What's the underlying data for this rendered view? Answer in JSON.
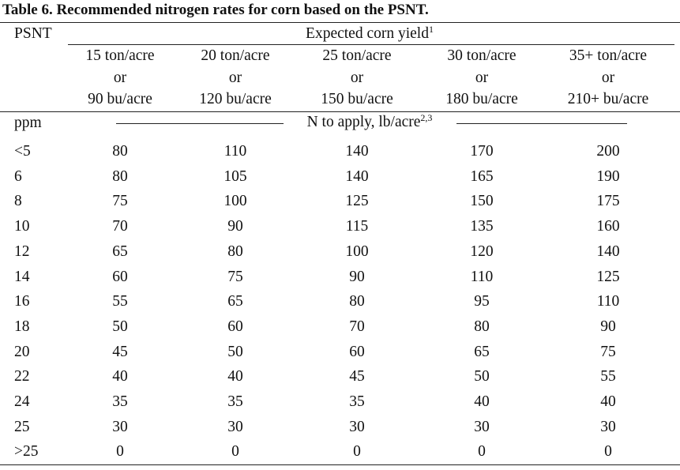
{
  "header": {
    "title": "Table 6. Recommended nitrogen rates for corn based on the PSNT.",
    "psnt": "PSNT",
    "yield": "Expected corn yield",
    "yield_note": "1"
  },
  "columns": [
    [
      "15 ton/acre",
      "or",
      "90 bu/acre"
    ],
    [
      "20 ton/acre",
      "or",
      "120 bu/acre"
    ],
    [
      "25 ton/acre",
      "or",
      "150 bu/acre"
    ],
    [
      "30 ton/acre",
      "or",
      "180 bu/acre"
    ],
    [
      "35+ ton/acre",
      "or",
      "210+ bu/acre"
    ]
  ],
  "units": {
    "label": "ppm",
    "text": "N to apply, lb/acre",
    "note": "2,3"
  },
  "rows": [
    [
      "<5",
      80,
      110,
      140,
      170,
      200
    ],
    [
      "6",
      80,
      105,
      140,
      165,
      190
    ],
    [
      "8",
      75,
      100,
      125,
      150,
      175
    ],
    [
      "10",
      70,
      90,
      115,
      135,
      160
    ],
    [
      "12",
      65,
      80,
      100,
      120,
      140
    ],
    [
      "14",
      60,
      75,
      90,
      110,
      125
    ],
    [
      "16",
      55,
      65,
      80,
      95,
      110
    ],
    [
      "18",
      50,
      60,
      70,
      80,
      90
    ],
    [
      "20",
      45,
      50,
      60,
      65,
      75
    ],
    [
      "22",
      40,
      40,
      45,
      50,
      55
    ],
    [
      "24",
      35,
      35,
      35,
      40,
      40
    ],
    [
      "25",
      30,
      30,
      30,
      30,
      30
    ],
    [
      ">25",
      0,
      0,
      0,
      0,
      0
    ]
  ]
}
